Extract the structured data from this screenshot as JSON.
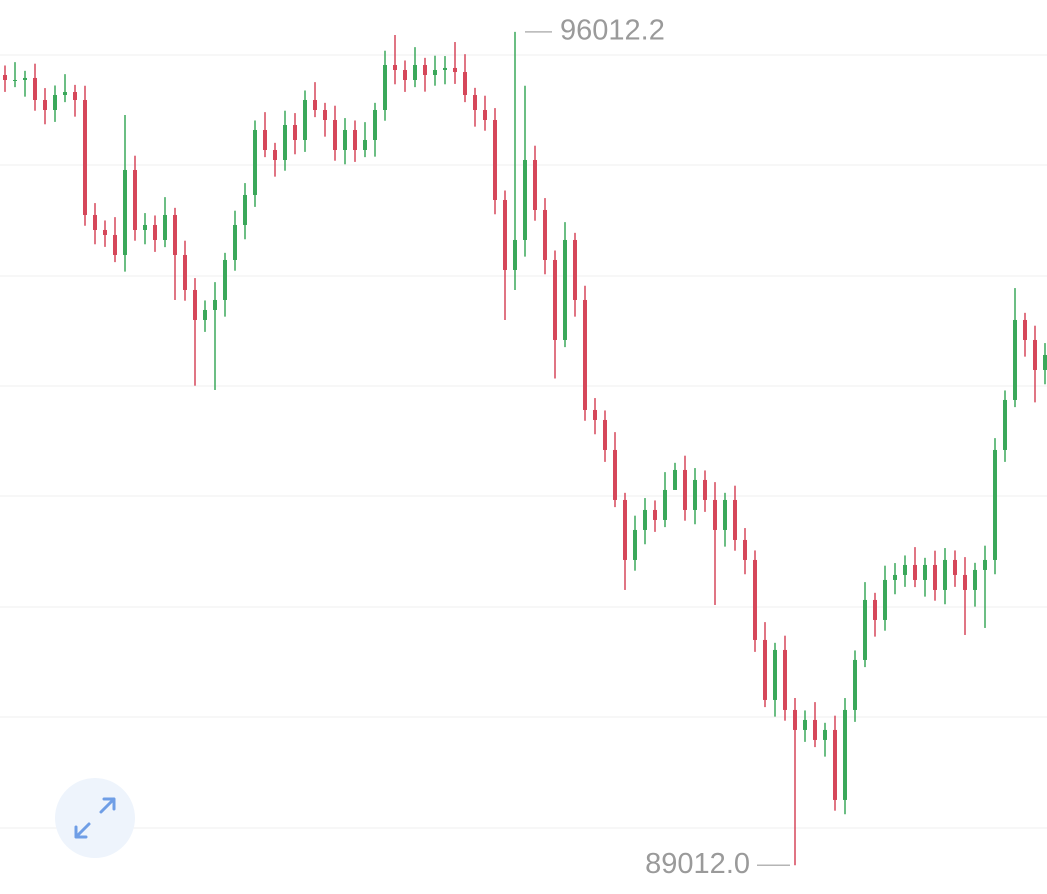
{
  "chart_data": {
    "type": "candlestick",
    "up_color": "#3aa85a",
    "down_color": "#d6475a",
    "ylim": [
      88770,
      96280
    ],
    "max_label": 96012.2,
    "min_label": {
      "value": 89012,
      "label": "89012.0"
    },
    "open": [
      95650,
      95608,
      95608,
      95625,
      95440,
      95356,
      95482,
      95507,
      95440,
      94474,
      94348,
      94306,
      94138,
      94852,
      94348,
      94390,
      94264,
      94474,
      94138,
      93844,
      93592,
      93676,
      93760,
      94096,
      94390,
      94642,
      95188,
      95020,
      94936,
      95230,
      95104,
      95440,
      95356,
      95272,
      95020,
      95188,
      95020,
      95104,
      95356,
      95734,
      95692,
      95608,
      95734,
      95650,
      95692,
      95709,
      95675,
      95482,
      95356,
      95272,
      94600,
      94012,
      94264,
      94936,
      94516,
      94096,
      93424,
      94264,
      93760,
      92836,
      92752,
      92500,
      92080,
      91576,
      91828,
      91996,
      91912,
      92164,
      92332,
      91996,
      92248,
      92080,
      91828,
      92080,
      91744,
      91576,
      90904,
      90400,
      90820,
      90316,
      90148,
      90232,
      90064,
      90148,
      89560,
      90316,
      90736,
      91240,
      91072,
      91408,
      91450,
      91534,
      91408,
      91534,
      91324,
      91576,
      91450,
      91324,
      91492,
      91576,
      92500,
      92920,
      93592,
      93424,
      93172
    ],
    "high": [
      95730,
      95758,
      95685,
      95745,
      95540,
      95562,
      95657,
      95567,
      95560,
      94574,
      94428,
      94456,
      95314,
      94972,
      94490,
      94470,
      94624,
      94534,
      94258,
      93944,
      93756,
      93910,
      94156,
      94510,
      94742,
      95268,
      95338,
      95080,
      95350,
      95330,
      95520,
      95590,
      95416,
      95392,
      95288,
      95268,
      95254,
      95416,
      95854,
      95986,
      95772,
      95884,
      95794,
      95812,
      95809,
      95927,
      95825,
      95542,
      95476,
      95372,
      94680,
      96012.2,
      95560,
      95056,
      94616,
      94176,
      94414,
      94324,
      93880,
      92936,
      92832,
      92650,
      92140,
      91948,
      92096,
      92076,
      92314,
      92392,
      92452,
      92348,
      92328,
      92230,
      92140,
      92200,
      91844,
      91656,
      91054,
      90880,
      90940,
      90416,
      90312,
      90382,
      90208,
      90268,
      90416,
      90816,
      91390,
      91300,
      91528,
      91550,
      91614,
      91684,
      91594,
      91654,
      91676,
      91656,
      91600,
      91552,
      91696,
      92600,
      93000,
      93860,
      93652,
      93544,
      93398
    ],
    "low": [
      95508,
      95548,
      95468,
      95350,
      95236,
      95256,
      95422,
      95300,
      94384,
      94228,
      94206,
      94078,
      93998,
      94258,
      94228,
      94164,
      94204,
      93760,
      93754,
      93040,
      93492,
      93004,
      93620,
      94006,
      94270,
      94542,
      94960,
      94796,
      94846,
      94984,
      95004,
      95296,
      95132,
      94930,
      94900,
      94920,
      94960,
      94964,
      95266,
      95572,
      95508,
      95548,
      95510,
      95560,
      95572,
      95575,
      95422,
      95216,
      95182,
      94480,
      93592,
      93844,
      94124,
      94426,
      93976,
      93100,
      93364,
      93620,
      92746,
      92632,
      92400,
      92020,
      91324,
      91486,
      91708,
      91812,
      91852,
      92192,
      91906,
      91876,
      91980,
      91198,
      91688,
      91654,
      91456,
      90804,
      90340,
      90260,
      90226,
      89012,
      90048,
      90004,
      89924,
      89470,
      89440,
      90216,
      90676,
      90932,
      90982,
      91288,
      91350,
      91348,
      91268,
      91234,
      91204,
      91350,
      90946,
      91184,
      91005,
      91456,
      92400,
      92860,
      93284,
      92900,
      93052
    ],
    "close": [
      95608,
      95608,
      95625,
      95440,
      95356,
      95482,
      95507,
      95440,
      94474,
      94348,
      94306,
      94138,
      94852,
      94348,
      94390,
      94264,
      94474,
      94138,
      93844,
      93592,
      93676,
      93760,
      94096,
      94390,
      94642,
      95188,
      95020,
      94936,
      95230,
      95104,
      95440,
      95356,
      95272,
      95020,
      95188,
      95020,
      95104,
      95356,
      95734,
      95692,
      95608,
      95734,
      95650,
      95692,
      95709,
      95675,
      95482,
      95356,
      95272,
      94600,
      94012,
      94264,
      94936,
      94516,
      94096,
      93424,
      94264,
      93760,
      92836,
      92752,
      92500,
      92080,
      91576,
      91828,
      91996,
      91912,
      92164,
      92332,
      91996,
      92248,
      92080,
      91828,
      92080,
      91744,
      91576,
      90904,
      90400,
      90820,
      90316,
      90148,
      90232,
      90064,
      90148,
      89560,
      90316,
      90736,
      91240,
      91072,
      91408,
      91450,
      91534,
      91408,
      91534,
      91324,
      91576,
      91450,
      91324,
      91492,
      91576,
      92500,
      92920,
      93592,
      93424,
      93172,
      93298
    ]
  }
}
